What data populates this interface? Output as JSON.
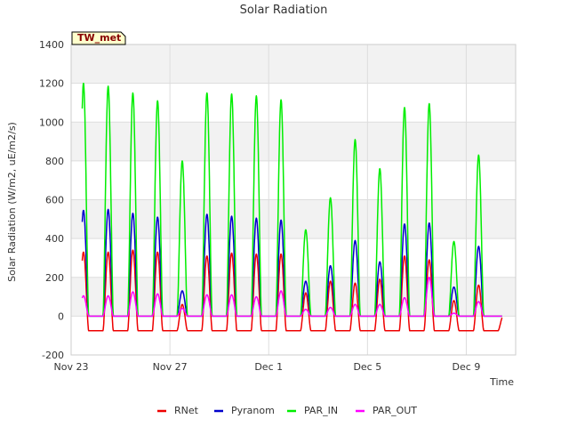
{
  "chart_data": {
    "type": "line",
    "title": "Solar Radiation",
    "ylabel": "Solar Radiation (W/m2, uE/m2/s)",
    "xlabel": "Time",
    "site_label": "TW_met",
    "ylim": [
      -200,
      1400
    ],
    "yticks": [
      -200,
      0,
      200,
      400,
      600,
      800,
      1000,
      1200,
      1400
    ],
    "xlim": [
      "2023-11-23",
      "2023-12-11"
    ],
    "xticks": [
      {
        "label": "Nov 23",
        "date": "2023-11-23"
      },
      {
        "label": "Nov 27",
        "date": "2023-11-27"
      },
      {
        "label": "Dec 1",
        "date": "2023-12-01"
      },
      {
        "label": "Dec 5",
        "date": "2023-12-05"
      },
      {
        "label": "Dec 9",
        "date": "2023-12-09"
      }
    ],
    "grid": true,
    "legend_position": "bottom",
    "daily_peaks": {
      "dates": [
        "2023-11-23",
        "2023-11-24",
        "2023-11-25",
        "2023-11-26",
        "2023-11-27",
        "2023-11-28",
        "2023-11-29",
        "2023-11-30",
        "2023-12-01",
        "2023-12-02",
        "2023-12-03",
        "2023-12-04",
        "2023-12-05",
        "2023-12-06",
        "2023-12-07",
        "2023-12-08",
        "2023-12-09",
        "2023-12-10"
      ],
      "series": [
        {
          "name": "RNet",
          "color": "#ee0000",
          "night_value": -75,
          "values": [
            330,
            330,
            340,
            330,
            60,
            310,
            325,
            320,
            320,
            120,
            180,
            170,
            190,
            310,
            290,
            80,
            160,
            0
          ]
        },
        {
          "name": "Pyranom",
          "color": "#0000cc",
          "night_value": 0,
          "values": [
            545,
            550,
            530,
            510,
            130,
            525,
            515,
            505,
            495,
            180,
            260,
            390,
            280,
            475,
            480,
            150,
            360,
            0
          ]
        },
        {
          "name": "PAR_IN",
          "color": "#00ee00",
          "night_value": 0,
          "values": [
            1200,
            1185,
            1150,
            1110,
            800,
            1150,
            1145,
            1135,
            1115,
            445,
            610,
            910,
            760,
            1075,
            1095,
            385,
            830,
            0
          ]
        },
        {
          "name": "PAR_OUT",
          "color": "#ff00ff",
          "night_value": 0,
          "values": [
            105,
            105,
            125,
            115,
            40,
            110,
            110,
            100,
            130,
            35,
            45,
            60,
            60,
            95,
            200,
            15,
            75,
            0
          ]
        }
      ]
    }
  }
}
